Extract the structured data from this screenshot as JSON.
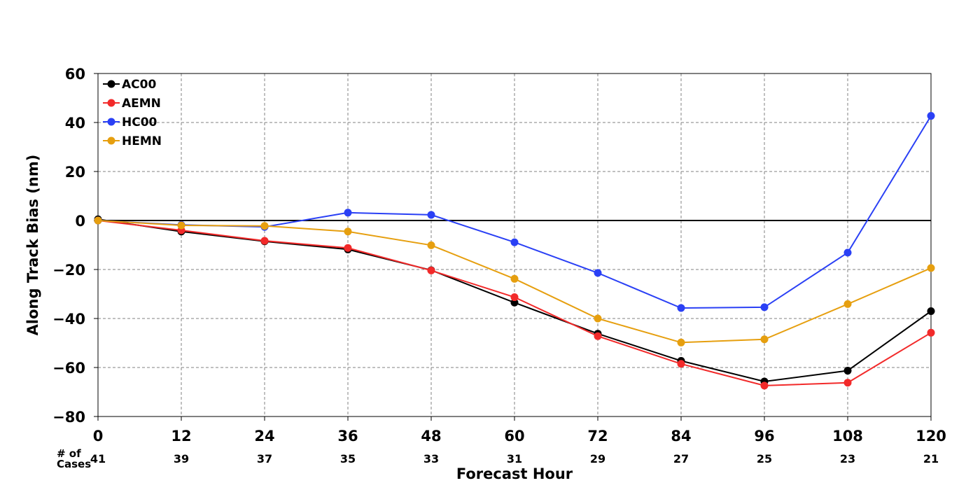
{
  "chart_data": {
    "type": "line",
    "xlabel": "Forecast Hour",
    "ylabel": "Along Track Bias (nm)",
    "xlim": [
      0,
      120
    ],
    "ylim": [
      -80,
      60
    ],
    "x": [
      0,
      12,
      24,
      36,
      48,
      60,
      72,
      84,
      96,
      108,
      120
    ],
    "x_tick_labels": [
      "0",
      "12",
      "24",
      "36",
      "48",
      "60",
      "72",
      "84",
      "96",
      "108",
      "120"
    ],
    "y_ticks": [
      60,
      40,
      20,
      0,
      -20,
      -40,
      -60,
      -80
    ],
    "y_tick_labels": [
      "60",
      "40",
      "20",
      "0",
      "−20",
      "−40",
      "−60",
      "−80"
    ],
    "grid": true,
    "zero_line": true,
    "legend_position": "top-left",
    "series": [
      {
        "name": "AC00",
        "color": "#000000",
        "values": [
          0.5,
          -4.5,
          -8.5,
          -11.8,
          -20.3,
          -33.5,
          -46.2,
          -57.3,
          -65.7,
          -61.3,
          -37.0
        ]
      },
      {
        "name": "AEMN",
        "color": "#f22a2a",
        "values": [
          0.0,
          -4.0,
          -8.3,
          -11.2,
          -20.4,
          -31.3,
          -47.2,
          -58.5,
          -67.4,
          -66.2,
          -45.8
        ]
      },
      {
        "name": "HC00",
        "color": "#2a40f5",
        "values": [
          0.0,
          -1.8,
          -2.6,
          3.2,
          2.3,
          -8.9,
          -21.4,
          -35.7,
          -35.4,
          -13.1,
          42.7
        ]
      },
      {
        "name": "HEMN",
        "color": "#e69f0f",
        "values": [
          0.0,
          -2.0,
          -2.2,
          -4.5,
          -10.1,
          -23.8,
          -40.0,
          -49.8,
          -48.5,
          -34.1,
          -19.4
        ]
      }
    ],
    "cases_label_line1": "# of",
    "cases_label_line2": "Cases",
    "cases": [
      "41",
      "39",
      "37",
      "35",
      "33",
      "31",
      "29",
      "27",
      "25",
      "23",
      "21"
    ]
  }
}
